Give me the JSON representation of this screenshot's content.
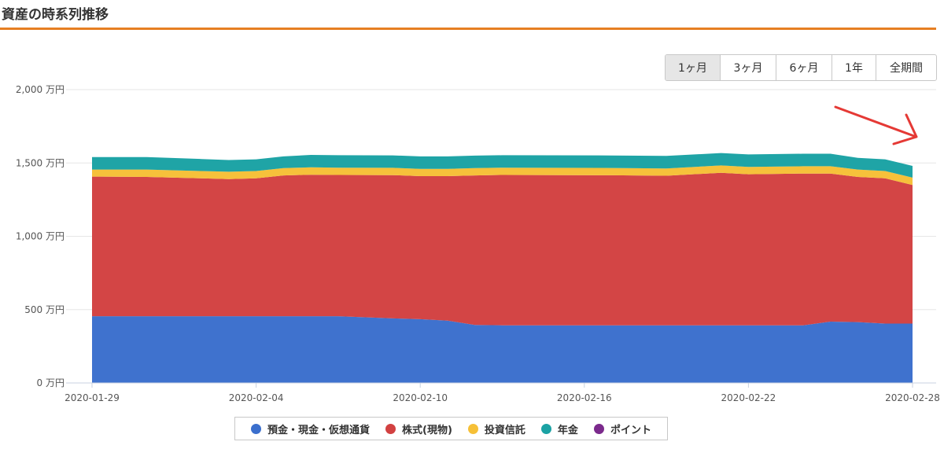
{
  "page": {
    "title": "資産の時系列推移"
  },
  "range_buttons": [
    {
      "label": "1ヶ月",
      "active": true
    },
    {
      "label": "3ヶ月",
      "active": false
    },
    {
      "label": "6ヶ月",
      "active": false
    },
    {
      "label": "1年",
      "active": false
    },
    {
      "label": "全期間",
      "active": false
    }
  ],
  "annotation": {
    "type": "red-arrow",
    "color": "#e53935"
  },
  "chart_data": {
    "type": "area",
    "stacked": true,
    "title": "",
    "xlabel": "",
    "ylabel": "",
    "y_unit": "万円",
    "ylim": [
      0,
      2000
    ],
    "y_ticks": [
      "0 万円",
      "500 万円",
      "1,000 万円",
      "1,500 万円",
      "2,000 万円"
    ],
    "x": [
      "2020-01-29",
      "2020-01-31",
      "2020-02-02",
      "2020-02-03",
      "2020-02-04",
      "2020-02-05",
      "2020-02-06",
      "2020-02-07",
      "2020-02-09",
      "2020-02-10",
      "2020-02-11",
      "2020-02-12",
      "2020-02-13",
      "2020-02-17",
      "2020-02-19",
      "2020-02-21",
      "2020-02-22",
      "2020-02-24",
      "2020-02-25",
      "2020-02-26",
      "2020-02-27",
      "2020-02-28"
    ],
    "x_tick_labels": [
      "2020-01-29",
      "2020-02-04",
      "2020-02-10",
      "2020-02-16",
      "2020-02-22",
      "2020-02-28"
    ],
    "grid": true,
    "legend_position": "bottom",
    "series": [
      {
        "name": "預金・現金・仮想通貨",
        "color": "#3b6fcd",
        "values": [
          455,
          455,
          455,
          455,
          455,
          455,
          455,
          455,
          440,
          435,
          425,
          395,
          393,
          393,
          393,
          393,
          393,
          393,
          418,
          415,
          405,
          405
        ]
      },
      {
        "name": "株式(現物)",
        "color": "#d24141",
        "values": [
          952,
          950,
          940,
          935,
          940,
          960,
          965,
          963,
          977,
          975,
          985,
          1020,
          1025,
          1023,
          1020,
          1040,
          1030,
          1035,
          1010,
          990,
          990,
          945
        ]
      },
      {
        "name": "投資信託",
        "color": "#f6c037",
        "values": [
          48,
          50,
          50,
          50,
          50,
          50,
          50,
          50,
          50,
          50,
          50,
          50,
          50,
          50,
          50,
          50,
          50,
          50,
          50,
          50,
          50,
          50
        ]
      },
      {
        "name": "年金",
        "color": "#1ba2a4",
        "values": [
          85,
          85,
          82,
          80,
          80,
          80,
          85,
          85,
          85,
          85,
          85,
          85,
          85,
          85,
          85,
          85,
          85,
          85,
          85,
          80,
          80,
          80
        ]
      },
      {
        "name": "ポイント",
        "color": "#7b2a8c",
        "values": [
          0,
          0,
          0,
          0,
          0,
          0,
          0,
          0,
          0,
          0,
          0,
          0,
          0,
          0,
          0,
          0,
          0,
          0,
          0,
          0,
          0,
          0
        ]
      }
    ]
  }
}
